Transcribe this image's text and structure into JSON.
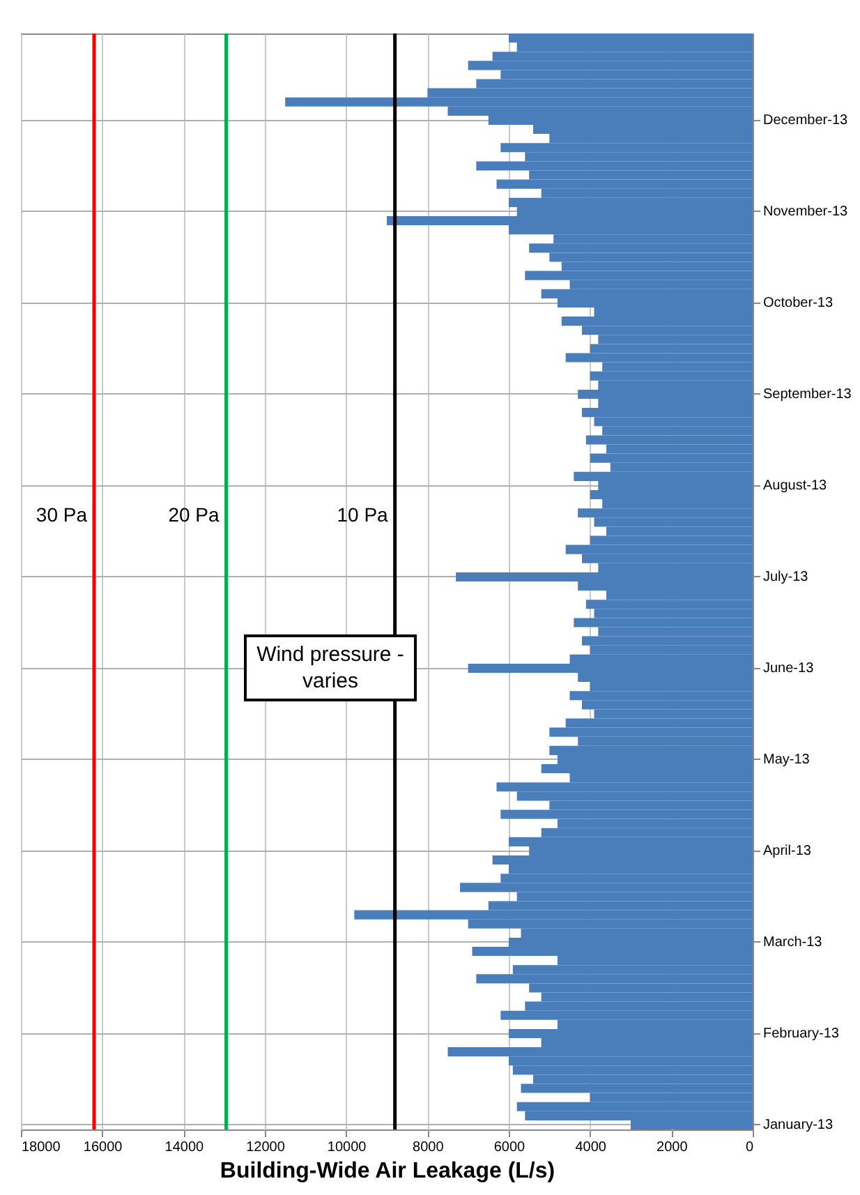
{
  "chart_data": {
    "type": "bar",
    "orientation": "horizontal",
    "xlabel": "Building-Wide Air Leakage (L/s)",
    "color": "#4a7ebb",
    "grid": true,
    "xlim": [
      18000,
      0
    ],
    "xticks": [
      0,
      2000,
      4000,
      6000,
      8000,
      10000,
      12000,
      14000,
      16000,
      18000
    ],
    "categories": [
      null,
      null,
      null,
      null,
      null,
      null,
      null,
      null,
      null,
      "December-13",
      null,
      null,
      null,
      null,
      null,
      null,
      null,
      null,
      null,
      "November-13",
      null,
      null,
      null,
      null,
      null,
      null,
      null,
      null,
      null,
      "October-13",
      null,
      null,
      null,
      null,
      null,
      null,
      null,
      null,
      null,
      "September-13",
      null,
      null,
      null,
      null,
      null,
      null,
      null,
      null,
      null,
      "August-13",
      null,
      null,
      null,
      null,
      null,
      null,
      null,
      null,
      null,
      "July-13",
      null,
      null,
      null,
      null,
      null,
      null,
      null,
      null,
      null,
      "June-13",
      null,
      null,
      null,
      null,
      null,
      null,
      null,
      null,
      null,
      "May-13",
      null,
      null,
      null,
      null,
      null,
      null,
      null,
      null,
      null,
      "April-13",
      null,
      null,
      null,
      null,
      null,
      null,
      null,
      null,
      null,
      "March-13",
      null,
      null,
      null,
      null,
      null,
      null,
      null,
      null,
      null,
      "February-13",
      null,
      null,
      null,
      null,
      null,
      null,
      null,
      null,
      null,
      "January-13"
    ],
    "values": [
      6000,
      5800,
      6400,
      7000,
      6200,
      6800,
      8000,
      11500,
      7500,
      6500,
      5400,
      5000,
      6200,
      5600,
      6800,
      5500,
      6300,
      5200,
      6000,
      5800,
      9000,
      6000,
      4900,
      5500,
      5000,
      4700,
      5600,
      4500,
      5200,
      4800,
      3900,
      4700,
      4200,
      3800,
      4000,
      4600,
      3700,
      4000,
      3800,
      4300,
      3800,
      4200,
      3900,
      3700,
      4100,
      3600,
      4000,
      3500,
      4400,
      3800,
      4000,
      3700,
      4300,
      3900,
      3600,
      4000,
      4600,
      4200,
      3800,
      7300,
      4300,
      3600,
      4100,
      3900,
      4400,
      3800,
      4200,
      4000,
      4500,
      7000,
      4300,
      4000,
      4500,
      4200,
      3900,
      4600,
      5000,
      4300,
      5000,
      4800,
      5200,
      4500,
      6300,
      5800,
      5000,
      6200,
      4800,
      5200,
      6000,
      5500,
      6400,
      6000,
      6200,
      7200,
      5800,
      6500,
      9800,
      7000,
      5700,
      6000,
      6900,
      4800,
      5900,
      6800,
      5500,
      5200,
      5600,
      6200,
      4800,
      6000,
      5200,
      7500,
      6000,
      5900,
      5400,
      5700,
      4000,
      5800,
      5600,
      3000
    ],
    "ref_lines": [
      {
        "axis": "x",
        "value": 16200,
        "label": "30 Pa",
        "color": "#ff0000"
      },
      {
        "axis": "x",
        "value": 12950,
        "label": "20 Pa",
        "color": "#00b050"
      },
      {
        "axis": "x",
        "value": 8800,
        "label": "10 Pa",
        "color": "#000000"
      }
    ],
    "annotations": [
      "Wind pressure - varies"
    ]
  }
}
